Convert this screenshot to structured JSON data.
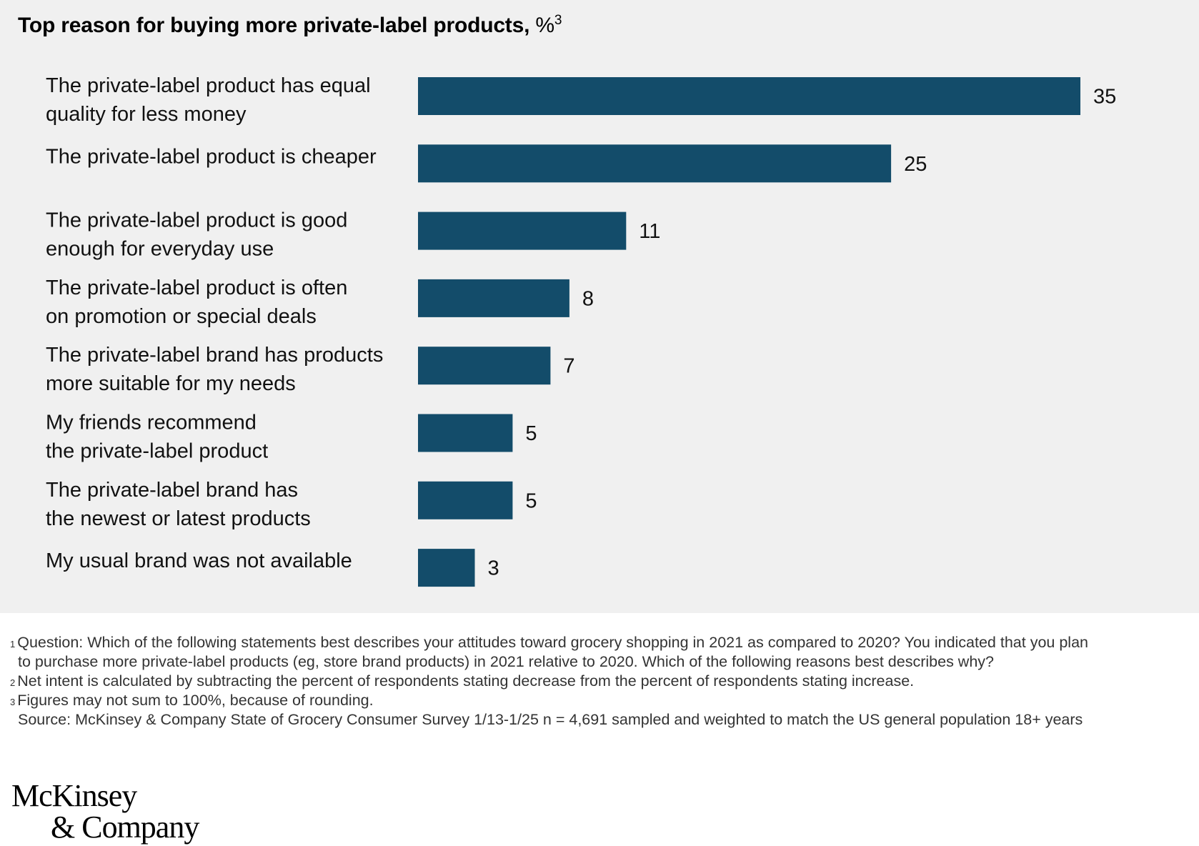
{
  "title": {
    "main": "Top reason for buying more private-label products, ",
    "unit": "%",
    "footnote_mark": "3"
  },
  "chart_data": {
    "type": "bar",
    "orientation": "horizontal",
    "title": "Top reason for buying more private-label products, %",
    "categories": [
      [
        "The private-label product has equal",
        "quality for less money"
      ],
      [
        "The private-label product is cheaper"
      ],
      [
        "The private-label product is good",
        "enough for everyday use"
      ],
      [
        "The private-label product is often",
        "on promotion or special deals"
      ],
      [
        "The private-label brand has products",
        "more suitable for my needs"
      ],
      [
        "My friends recommend",
        "the private-label product"
      ],
      [
        "The private-label brand has",
        "the newest or latest products"
      ],
      [
        "My usual brand was not available"
      ]
    ],
    "values": [
      35,
      25,
      11,
      8,
      7,
      5,
      5,
      3
    ],
    "value_labels": [
      "35",
      "25",
      "11",
      "8",
      "7",
      "5",
      "5",
      "3"
    ],
    "xlim": [
      0,
      35
    ],
    "grid": false,
    "legend": "none",
    "bar_color": "#134c6a"
  },
  "footnotes": [
    {
      "mark": "1",
      "lines": [
        "Question: Which of the following statements best describes your attitudes toward grocery shopping in 2021 as compared to 2020? You indicated that you plan",
        "to purchase more private-label products (eg, store brand products) in 2021 relative to 2020. Which of the following reasons best describes why?"
      ]
    },
    {
      "mark": "2",
      "lines": [
        "Net intent is calculated by subtracting the percent of respondents stating decrease from the percent of respondents stating increase."
      ]
    },
    {
      "mark": "3",
      "lines": [
        "Figures may not sum to 100%, because of rounding."
      ]
    }
  ],
  "source": "Source: McKinsey & Company State of Grocery Consumer Survey 1/13-1/25 n = 4,691 sampled and weighted to match the US general population 18+ years",
  "logo": {
    "line1": "McKinsey",
    "line2": "& Company"
  }
}
